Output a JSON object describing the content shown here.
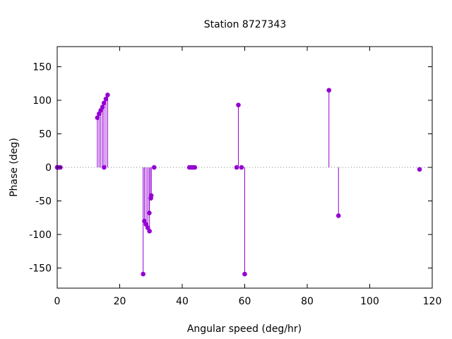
{
  "chart_data": {
    "type": "scatter",
    "style": "impulses-with-points",
    "title": "Station 8727343",
    "xlabel": "Angular speed (deg/hr)",
    "ylabel": "Phase (deg)",
    "xlim": [
      0,
      120
    ],
    "ylim": [
      -180,
      180
    ],
    "xticks": [
      "0",
      "20",
      "40",
      "60",
      "80",
      "100",
      "120"
    ],
    "yticks": [
      "-150",
      "-100",
      "-50",
      "0",
      "50",
      "100",
      "150"
    ],
    "grid": false,
    "zero_line": "dotted",
    "series_color": "#9400d3",
    "points": [
      {
        "x": 0.0,
        "y": 0
      },
      {
        "x": 0.04,
        "y": 0
      },
      {
        "x": 0.08,
        "y": 0
      },
      {
        "x": 0.5,
        "y": 0
      },
      {
        "x": 1.0,
        "y": 0
      },
      {
        "x": 12.85,
        "y": 74
      },
      {
        "x": 13.4,
        "y": 80
      },
      {
        "x": 13.94,
        "y": 85
      },
      {
        "x": 14.5,
        "y": 90
      },
      {
        "x": 14.96,
        "y": 96
      },
      {
        "x": 15.0,
        "y": 0
      },
      {
        "x": 15.59,
        "y": 102
      },
      {
        "x": 16.14,
        "y": 108
      },
      {
        "x": 27.5,
        "y": -159
      },
      {
        "x": 27.9,
        "y": -80
      },
      {
        "x": 28.44,
        "y": -85
      },
      {
        "x": 28.98,
        "y": -90
      },
      {
        "x": 29.46,
        "y": -68
      },
      {
        "x": 29.53,
        "y": -95
      },
      {
        "x": 29.96,
        "y": -46
      },
      {
        "x": 30.08,
        "y": -42
      },
      {
        "x": 31.02,
        "y": 0
      },
      {
        "x": 42.3,
        "y": 0
      },
      {
        "x": 42.93,
        "y": 0
      },
      {
        "x": 43.48,
        "y": 0
      },
      {
        "x": 44.03,
        "y": 0
      },
      {
        "x": 57.42,
        "y": 0
      },
      {
        "x": 57.97,
        "y": 93
      },
      {
        "x": 58.98,
        "y": 0
      },
      {
        "x": 60.0,
        "y": -159
      },
      {
        "x": 86.95,
        "y": 115
      },
      {
        "x": 90.0,
        "y": -72
      },
      {
        "x": 115.94,
        "y": -3
      }
    ]
  }
}
